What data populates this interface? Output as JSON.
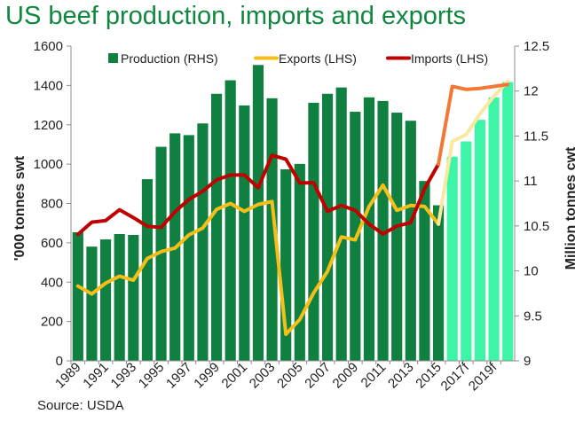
{
  "chart_data": {
    "type": "bar",
    "title": "US beef production, imports and exports",
    "source": "Source: USDA",
    "x": [
      "1989",
      "1990",
      "1991",
      "1992",
      "1993",
      "1994",
      "1995",
      "1996",
      "1997",
      "1998",
      "1999",
      "2000",
      "2001",
      "2002",
      "2003",
      "2004",
      "2005",
      "2006",
      "2007",
      "2008",
      "2009",
      "2010",
      "2011",
      "2012",
      "2013",
      "2014",
      "2015",
      "2016f",
      "2017f",
      "2018f",
      "2019f",
      "2020f"
    ],
    "x_tick_labels": [
      "1989",
      "1991",
      "1993",
      "1995",
      "1997",
      "1999",
      "2001",
      "2003",
      "2005",
      "2007",
      "2009",
      "2011",
      "2013",
      "2015",
      "2017f",
      "2019f"
    ],
    "forecast_start_index": 27,
    "y_left": {
      "label": "'000 tonnes swt",
      "min": 0,
      "max": 1600,
      "ticks": [
        0,
        200,
        400,
        600,
        800,
        1000,
        1200,
        1400,
        1600
      ]
    },
    "y_right": {
      "label": "Million tonnes cwt",
      "min": 9,
      "max": 12.5,
      "ticks": [
        "9",
        "9.5",
        "10",
        "10.5",
        "11",
        "11.5",
        "12",
        "12.5"
      ]
    },
    "legend_placement": "top",
    "series": [
      {
        "name": "Production (RHS)",
        "type": "bar",
        "axis": "right",
        "color": "#0f8040",
        "forecast_color": "#3df5a6",
        "values": [
          10.43,
          10.27,
          10.35,
          10.41,
          10.4,
          11.02,
          11.38,
          11.53,
          11.51,
          11.64,
          11.97,
          12.12,
          11.84,
          12.29,
          11.92,
          11.13,
          11.19,
          11.87,
          11.97,
          12.04,
          11.77,
          11.93,
          11.89,
          11.76,
          11.67,
          11.0,
          10.73,
          11.27,
          11.44,
          11.68,
          11.93,
          12.1
        ]
      },
      {
        "name": "Exports (LHS)",
        "type": "line",
        "axis": "left",
        "color": "#f5bf19",
        "forecast_color": "#f9e89f",
        "values": [
          380,
          340,
          395,
          430,
          410,
          520,
          555,
          573,
          640,
          675,
          770,
          800,
          760,
          795,
          810,
          135,
          210,
          345,
          455,
          630,
          615,
          785,
          893,
          765,
          790,
          785,
          695,
          1115,
          1150,
          1255,
          1345,
          1420
        ]
      },
      {
        "name": "Imports (LHS)",
        "type": "line",
        "axis": "left",
        "color": "#c00000",
        "forecast_color": "#f27935",
        "values": [
          643,
          705,
          713,
          768,
          728,
          684,
          678,
          758,
          820,
          862,
          920,
          945,
          945,
          880,
          1045,
          1025,
          905,
          905,
          760,
          790,
          765,
          695,
          645,
          685,
          703,
          875,
          1000,
          1395,
          1380,
          1385,
          1395,
          1405
        ]
      }
    ]
  }
}
